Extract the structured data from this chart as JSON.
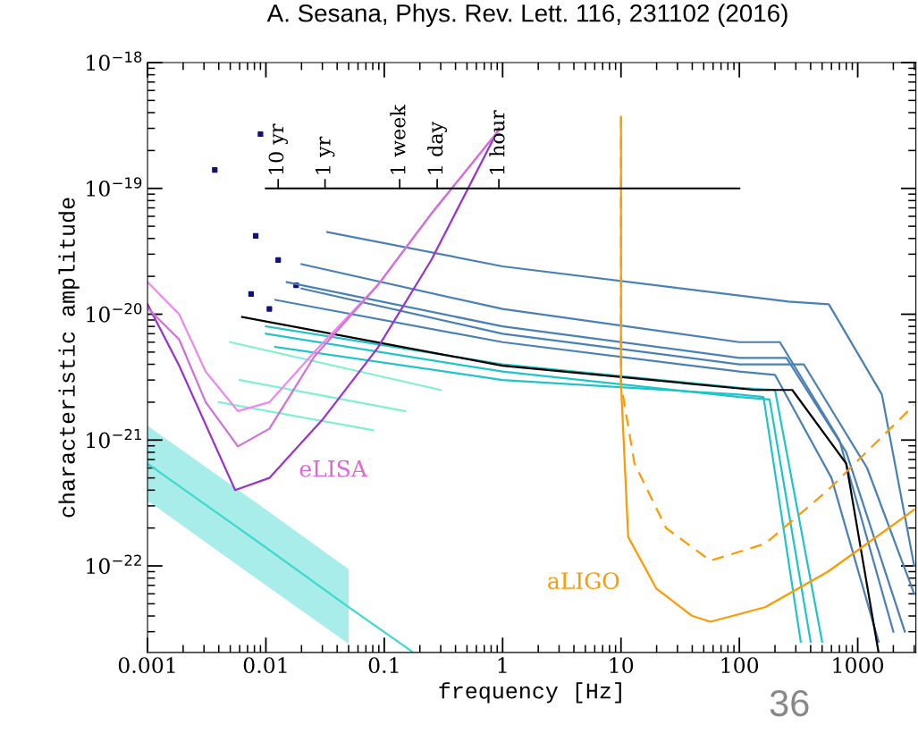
{
  "chart_data": {
    "type": "line",
    "title": "A. Sesana, Phys. Rev. Lett. 116, 231102 (2016)",
    "xlabel": "frequency [Hz]",
    "ylabel": "characteristic amplitude",
    "log": "xy",
    "grid": false,
    "xlim": [
      0.001,
      3100
    ],
    "ylim": [
      2.05e-23,
      1e-18
    ],
    "xticks": [
      0.001,
      0.01,
      0.1,
      1,
      10,
      100,
      1000
    ],
    "yticks": [
      {
        "value": 1e-18,
        "label": "10$^{−18}$"
      },
      {
        "value": 1e-19,
        "label": "10$^{−19}$"
      },
      {
        "value": 1e-20,
        "label": "10$^{−20}$"
      },
      {
        "value": 1e-21,
        "label": "10$^{−21}$"
      },
      {
        "value": 1e-22,
        "label": "10$^{−22}$"
      }
    ],
    "series": [
      {
        "color": "#40d8d0",
        "x": [
          0.001,
          0.01,
          0.05,
          0.17
        ],
        "values": [
          6.5e-22,
          1.4e-22,
          4.7e-23,
          2.1e-23
        ],
        "lower": [
          3.3e-22,
          7e-23,
          2.4e-23,
          null
        ],
        "upper": [
          1.3e-21,
          2.8e-22,
          9.4e-23,
          null
        ]
      },
      {
        "color": "#80f0d0",
        "x": [
          0.005,
          0.3
        ],
        "values": [
          6e-21,
          2.5e-21
        ]
      },
      {
        "color": "#80f0d0",
        "x": [
          0.006,
          0.15
        ],
        "values": [
          3e-21,
          1.7e-21
        ]
      },
      {
        "color": "#80f0d0",
        "x": [
          0.004,
          0.08
        ],
        "values": [
          2e-21,
          1.2e-21
        ]
      },
      {
        "color": "#20c4c8",
        "x": [
          0.01,
          1,
          100,
          180,
          400
        ],
        "values": [
          7e-21,
          3.5e-21,
          2.2e-21,
          2.1e-21,
          2.5e-23
        ]
      },
      {
        "color": "#20c4c8",
        "x": [
          0.012,
          1,
          100,
          160,
          330
        ],
        "values": [
          5.5e-21,
          3e-21,
          2.3e-21,
          2.2e-21,
          2.5e-23
        ]
      },
      {
        "color": "#20c4c8",
        "x": [
          0.01,
          1,
          100,
          200,
          500
        ],
        "values": [
          8e-21,
          4e-21,
          2.6e-21,
          2.5e-21,
          2.5e-23
        ]
      },
      {
        "color": "#4a80b4",
        "x": [
          0.02,
          1,
          100,
          220,
          700,
          2000
        ],
        "values": [
          2.5e-20,
          1.1e-20,
          6e-21,
          6e-21,
          1e-21,
          3e-23
        ]
      },
      {
        "color": "#4a80b4",
        "x": [
          0.015,
          1,
          100,
          250,
          800,
          2500
        ],
        "values": [
          1.8e-20,
          8e-21,
          4.5e-21,
          4.5e-21,
          8e-22,
          3e-23
        ]
      },
      {
        "color": "#4a80b4",
        "x": [
          0.012,
          1,
          100,
          200,
          600,
          1500
        ],
        "values": [
          1.3e-20,
          6e-21,
          3.5e-21,
          3.3e-21,
          5e-22,
          2.5e-23
        ]
      },
      {
        "color": "#4a80b4",
        "x": [
          0.02,
          1,
          100,
          350,
          1200,
          3000
        ],
        "values": [
          1.6e-20,
          7e-21,
          4e-21,
          4e-21,
          6e-22,
          6e-23
        ]
      },
      {
        "color": "#4a80b4",
        "x": [
          0.033,
          1,
          260,
          570,
          1600,
          3000
        ],
        "values": [
          4.5e-20,
          2.4e-20,
          1.26e-20,
          1.2e-20,
          2.3e-21,
          1e-22
        ]
      },
      {
        "type": "scatter",
        "marker": "square",
        "color": "#10107a",
        "x": [
          0.0037,
          0.009,
          0.0082,
          0.0127,
          0.018,
          0.0107,
          0.0075
        ],
        "values": [
          1.4e-19,
          2.7e-19,
          4.2e-20,
          2.7e-20,
          1.7e-20,
          1.1e-20,
          1.45e-20
        ]
      },
      {
        "color": "#000000",
        "x": [
          0.0063,
          1,
          137,
          280,
          800,
          1500
        ],
        "values": [
          9.5e-21,
          3.9e-21,
          2.5e-21,
          2.5e-21,
          6.5e-22,
          2.05e-23
        ]
      },
      {
        "color": "#ee88ee",
        "x": [
          0.001,
          0.00185,
          0.0031,
          0.0058,
          0.0107,
          0.0256,
          0.088,
          0.25,
          0.93
        ],
        "values": [
          1.8e-20,
          1e-20,
          3.5e-21,
          1.7e-21,
          2e-21,
          5e-21,
          1.7e-20,
          6.3e-20,
          2.9e-19
        ]
      },
      {
        "color": "#9933cc",
        "x": [
          0.001,
          0.00185,
          0.0055,
          0.0107,
          0.03,
          0.088,
          0.25,
          0.93
        ],
        "values": [
          1.2e-20,
          3.9e-21,
          4e-22,
          5e-22,
          1.45e-21,
          5.4e-21,
          2.7e-20,
          3e-19
        ]
      },
      {
        "color": "#d070d8",
        "x": [
          0.001,
          0.00185,
          0.0031,
          0.0058,
          0.0107,
          0.0256,
          0.088,
          0.25,
          0.93
        ],
        "values": [
          1.12e-20,
          6.3e-21,
          2e-21,
          8.9e-22,
          1.23e-21,
          4.6e-21,
          1.7e-20,
          6.3e-20,
          2.9e-19
        ]
      },
      {
        "color": "#ff9900",
        "line_style": "dashed",
        "x": [
          10,
          10,
          13,
          24,
          57,
          165,
          560,
          3000
        ],
        "values": [
          3.7e-19,
          2.8e-21,
          6.5e-22,
          2e-22,
          1.1e-22,
          1.5e-22,
          4e-22,
          1.9e-21
        ]
      },
      {
        "color": "#ff9900",
        "x": [
          10,
          10,
          11.5,
          19.9,
          40,
          57,
          165,
          560,
          3000
        ],
        "values": [
          3.7e-19,
          2.8e-21,
          1.7e-22,
          6.6e-23,
          4e-23,
          3.6e-23,
          4.7e-23,
          9e-23,
          2.8e-22
        ]
      },
      {
        "color": "#000000",
        "x": [
          0.01,
          100
        ],
        "values": [
          1e-19,
          1e-19
        ]
      }
    ],
    "annotations": [
      {
        "text": "10 yr",
        "x": 0.0127,
        "y": 1e-19
      },
      {
        "text": "1 yr",
        "x": 0.0316,
        "y": 1e-19
      },
      {
        "text": "1 week",
        "x": 0.135,
        "y": 1e-19
      },
      {
        "text": "1 day",
        "x": 0.28,
        "y": 1e-19
      },
      {
        "text": "1 hour",
        "x": 0.93,
        "y": 1e-19
      },
      "eLISA",
      "aLIGO",
      "36"
    ]
  }
}
